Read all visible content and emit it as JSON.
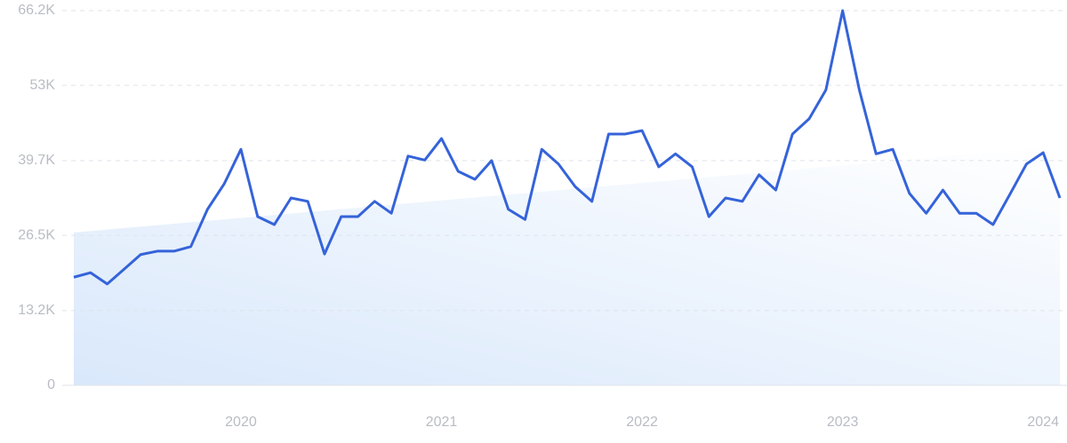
{
  "chart_data": {
    "type": "line",
    "x": [
      2019.1667,
      2019.25,
      2019.3333,
      2019.4167,
      2019.5,
      2019.5833,
      2019.6667,
      2019.75,
      2019.8333,
      2019.9167,
      2020.0,
      2020.0833,
      2020.1667,
      2020.25,
      2020.3333,
      2020.4167,
      2020.5,
      2020.5833,
      2020.6667,
      2020.75,
      2020.8333,
      2020.9167,
      2021.0,
      2021.0833,
      2021.1667,
      2021.25,
      2021.3333,
      2021.4167,
      2021.5,
      2021.5833,
      2021.6667,
      2021.75,
      2021.8333,
      2021.9167,
      2022.0,
      2022.0833,
      2022.1667,
      2022.25,
      2022.3333,
      2022.4167,
      2022.5,
      2022.5833,
      2022.6667,
      2022.75,
      2022.8333,
      2022.9167,
      2023.0,
      2023.0833,
      2023.1667,
      2023.25,
      2023.3333,
      2023.4167,
      2023.5,
      2023.5833,
      2023.6667,
      2023.75,
      2023.8333,
      2023.9167,
      2024.0,
      2024.0833
    ],
    "series": [
      {
        "color": "#3563d9",
        "values": [
          19100,
          19900,
          17900,
          20500,
          23100,
          23700,
          23700,
          24500,
          31100,
          35600,
          41700,
          29800,
          28400,
          33100,
          32500,
          23200,
          29800,
          29800,
          32500,
          30400,
          40500,
          39800,
          43600,
          37800,
          36400,
          39700,
          31100,
          29300,
          41700,
          39100,
          35100,
          32500,
          44400,
          44400,
          45000,
          38600,
          40900,
          38600,
          29800,
          33100,
          32500,
          37200,
          34500,
          44400,
          47100,
          52200,
          66200,
          52200,
          40900,
          41700,
          33900,
          30400,
          34500,
          30400,
          30400,
          28400,
          33700,
          39100,
          41100,
          33100
        ]
      }
    ],
    "trend": {
      "x": [
        2019.1667,
        2024.0833
      ],
      "values": [
        27000,
        42200
      ],
      "color": "#d6e6fb"
    },
    "xlim": [
      2019.1667,
      2024.0833
    ],
    "xticks": [
      2020,
      2021,
      2022,
      2023,
      2024
    ],
    "ylim": [
      0,
      66200
    ],
    "yticks": [
      0,
      {
        "value": 13200,
        "label": "13.2K"
      },
      {
        "value": 26500,
        "label": "26.5K"
      },
      {
        "value": 39700,
        "label": "39.7K"
      },
      {
        "value": 53000,
        "label": "53K"
      },
      {
        "value": 66200,
        "label": "66.2K"
      }
    ],
    "grid": true
  }
}
